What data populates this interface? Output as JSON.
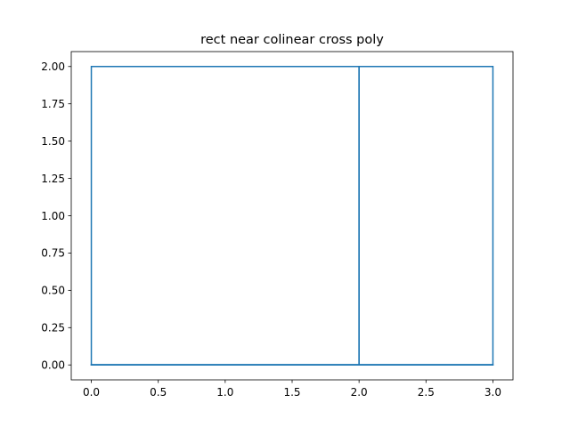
{
  "chart_data": {
    "type": "line",
    "title": "rect near colinear cross poly",
    "xlabel": "",
    "ylabel": "",
    "xlim": [
      -0.15,
      3.15
    ],
    "ylim": [
      -0.1,
      2.1
    ],
    "grid": false,
    "x_ticks": [
      0.0,
      0.5,
      1.0,
      1.5,
      2.0,
      2.5,
      3.0
    ],
    "x_tick_labels": [
      "0.0",
      "0.5",
      "1.0",
      "1.5",
      "2.0",
      "2.5",
      "3.0"
    ],
    "y_ticks": [
      0.0,
      0.25,
      0.5,
      0.75,
      1.0,
      1.25,
      1.5,
      1.75,
      2.0
    ],
    "y_tick_labels": [
      "0.00",
      "0.25",
      "0.50",
      "0.75",
      "1.00",
      "1.25",
      "1.50",
      "1.75",
      "2.00"
    ],
    "series": [
      {
        "color": "#1f77b4",
        "x": [
          0,
          2,
          2,
          3,
          3,
          0,
          0
        ],
        "y": [
          0,
          0,
          2,
          2,
          0,
          0,
          0
        ]
      },
      {
        "color": "#1f77b4",
        "x": [
          0,
          2,
          2,
          0,
          0
        ],
        "y": [
          0,
          0,
          2,
          2,
          0
        ]
      },
      {
        "color": "#1f77b4",
        "x": [
          0,
          3,
          3,
          0,
          0
        ],
        "y": [
          0,
          0,
          0.002,
          0.002,
          0
        ]
      }
    ]
  }
}
